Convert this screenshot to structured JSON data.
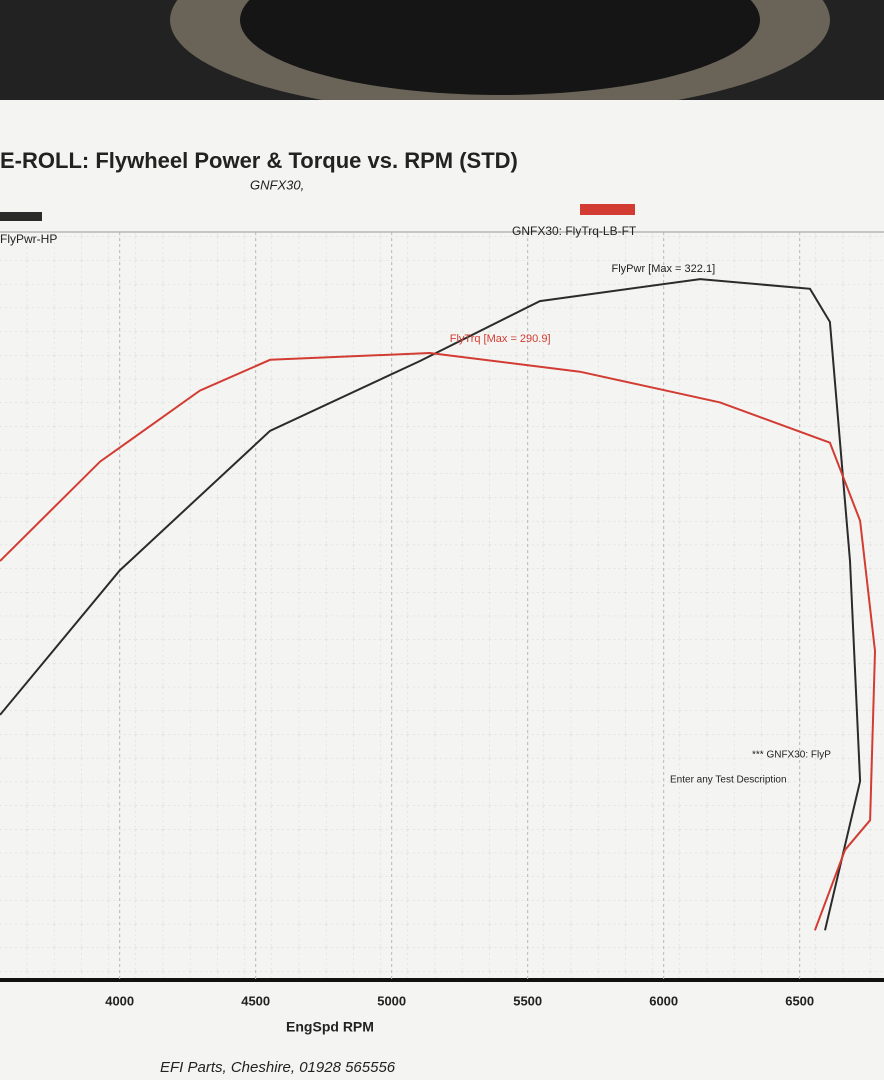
{
  "chart_data": {
    "type": "line",
    "title": "E-ROLL: Flywheel Power & Torque vs. RPM (STD)",
    "subtitle": "GNFX30,",
    "x_label": "EngSpd RPM",
    "footer": "EFI Parts, Cheshire, 01928 565556",
    "xlim": [
      3560,
      6810
    ],
    "ylim": [
      26,
      342
    ],
    "xticks": [
      4000,
      4500,
      5000,
      5500,
      6000,
      6500
    ],
    "grid": true,
    "series": [
      {
        "name": "FlyPwr-HP",
        "color": "#2b2b2b",
        "x": [
          3560,
          4000,
          4553,
          5104,
          5545,
          6134,
          6538,
          6611,
          6685,
          6722,
          6593
        ],
        "values": [
          138,
          199,
          258,
          287.5,
          312.8,
          322.1,
          318,
          304,
          203,
          110,
          47
        ]
      },
      {
        "name": "GNFX30: FlyTrq-LB-FT",
        "color": "#d23c32",
        "x": [
          3560,
          3928,
          4295,
          4553,
          5140,
          5692,
          6207,
          6611,
          6722,
          6777,
          6759,
          6667,
          6556
        ],
        "values": [
          203,
          245,
          275,
          288,
          290.9,
          283,
          270,
          253,
          220,
          165,
          93.5,
          81,
          47
        ]
      }
    ],
    "annotations": [
      "FlyPwr [Max = 322.1]",
      "FlyTrq [Max = 290.9]",
      "*** GNFX30: FlyP",
      "Enter any Test Description"
    ]
  }
}
